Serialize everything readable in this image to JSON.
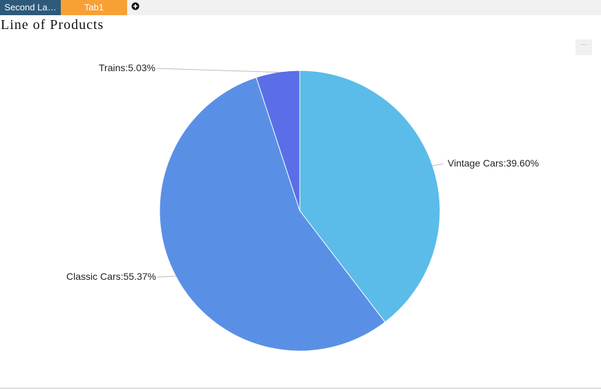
{
  "tabs": [
    "Second La…",
    "Tab1"
  ],
  "menu": "···",
  "chart_data": {
    "type": "pie",
    "title": "Line of Products",
    "categories": [
      "Vintage Cars",
      "Classic Cars",
      "Trains"
    ],
    "values": [
      39.6,
      55.37,
      5.03
    ],
    "value_labels": [
      "39.60%",
      "55.37%",
      "5.03%"
    ],
    "label_separator": ":",
    "colors": [
      "#5bbce9",
      "#5990e6",
      "#5b6ee8"
    ]
  }
}
